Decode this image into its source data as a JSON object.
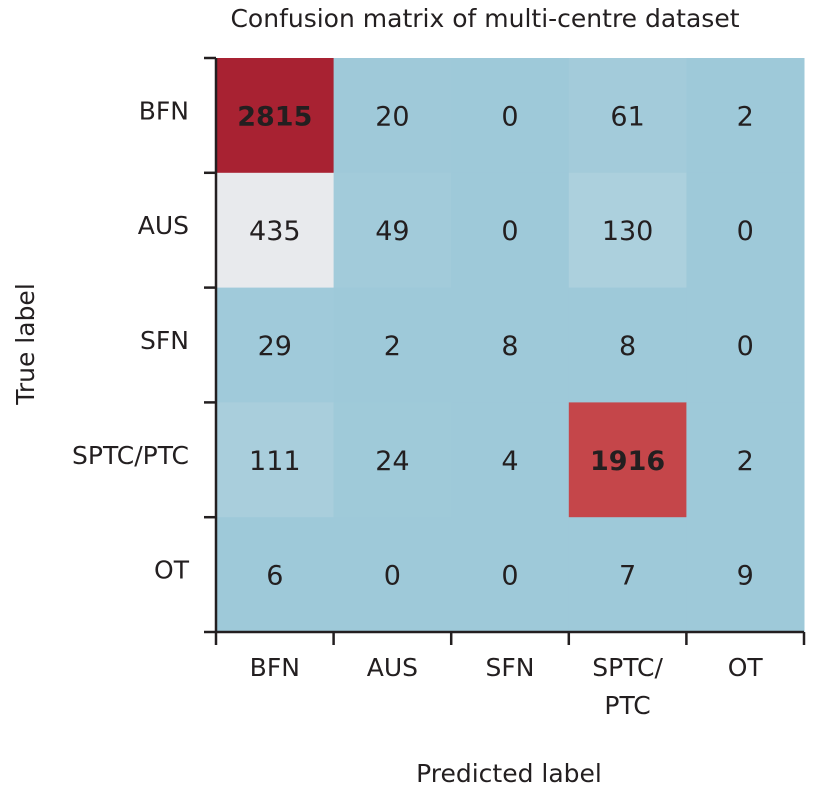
{
  "chart_data": {
    "type": "heatmap",
    "title": "Confusion matrix of multi-centre dataset",
    "xlabel": "Predicted label",
    "ylabel": "True label",
    "x_categories": [
      "BFN",
      "AUS",
      "SFN",
      "SPTC/PTC",
      "OT"
    ],
    "x_tick_lines": [
      [
        "BFN"
      ],
      [
        "AUS"
      ],
      [
        "SFN"
      ],
      [
        "SPTC/",
        "PTC"
      ],
      [
        "OT"
      ]
    ],
    "y_categories": [
      "BFN",
      "AUS",
      "SFN",
      "SPTC/PTC",
      "OT"
    ],
    "matrix": [
      [
        2815,
        20,
        0,
        61,
        2
      ],
      [
        435,
        49,
        0,
        130,
        0
      ],
      [
        29,
        2,
        8,
        8,
        0
      ],
      [
        111,
        24,
        4,
        1916,
        2
      ],
      [
        6,
        0,
        0,
        7,
        9
      ]
    ],
    "colors": {
      "low": "#9ec9d9",
      "mid": "#e8ecef",
      "high": "#a82232",
      "hot": "#d65b58"
    }
  }
}
